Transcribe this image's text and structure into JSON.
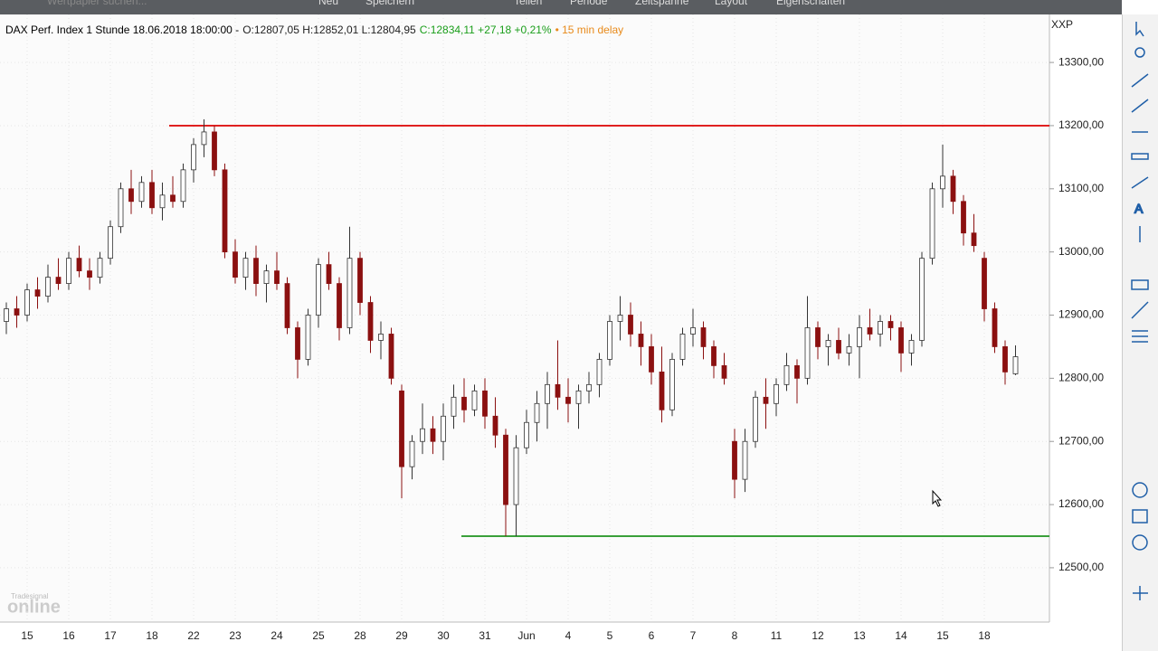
{
  "toolbar": {
    "search": "Wertpapier suchen...",
    "items": [
      "Neu",
      "Speichern",
      "Teilen",
      "Periode",
      "Zeitspanne",
      "Layout",
      "Eigenschaften"
    ]
  },
  "header": {
    "title": "DAX Perf. Index 1 Stunde 18.06.2018 18:00:00 -",
    "ohl": "O:12807,05 H:12852,01 L:12804,95",
    "change": "C:12834,11 +27,18 +0,21%",
    "delay": "• 15 min delay"
  },
  "watermark": {
    "brand": "Tradesignal",
    "name": "online"
  },
  "chart_data": {
    "type": "candlestick",
    "axis_label": "XXP",
    "grid": true,
    "up_color": "#ffffff",
    "down_color": "#8b1010",
    "ylim": [
      12414,
      13376
    ],
    "yticks": [
      {
        "value": 12500,
        "label": "12500,00"
      },
      {
        "value": 12600,
        "label": "12600,00"
      },
      {
        "value": 12700,
        "label": "12700,00"
      },
      {
        "value": 12800,
        "label": "12800,00"
      },
      {
        "value": 12900,
        "label": "12900,00"
      },
      {
        "value": 13000,
        "label": "13000,00"
      },
      {
        "value": 13100,
        "label": "13100,00"
      },
      {
        "value": 13200,
        "label": "13200,00"
      },
      {
        "value": 13300,
        "label": "13300,00"
      }
    ],
    "hlines": [
      {
        "value": 13200,
        "color": "#e02020"
      },
      {
        "value": 12550,
        "color": "#3aa03a"
      }
    ],
    "categories": [
      null,
      null,
      "15",
      null,
      null,
      null,
      "16",
      null,
      null,
      null,
      "17",
      null,
      null,
      null,
      "18",
      null,
      null,
      null,
      "22",
      null,
      null,
      null,
      "23",
      null,
      null,
      null,
      "24",
      null,
      null,
      null,
      "25",
      null,
      null,
      null,
      "28",
      null,
      null,
      null,
      "29",
      null,
      null,
      null,
      "30",
      null,
      null,
      null,
      "31",
      null,
      null,
      null,
      "Jun",
      null,
      null,
      null,
      "4",
      null,
      null,
      null,
      "5",
      null,
      null,
      null,
      "6",
      null,
      null,
      null,
      "7",
      null,
      null,
      null,
      "8",
      null,
      null,
      null,
      "11",
      null,
      null,
      null,
      "12",
      null,
      null,
      null,
      "13",
      null,
      null,
      null,
      "14",
      null,
      null,
      null,
      "15",
      null,
      null,
      null,
      "18",
      null,
      null,
      null
    ],
    "open": [
      12890,
      12910,
      12900,
      12940,
      12930,
      12960,
      12950,
      12990,
      12970,
      12960,
      12990,
      13040,
      13100,
      13080,
      13110,
      13070,
      13090,
      13080,
      13130,
      13170,
      13190,
      13130,
      13000,
      12960,
      12990,
      12950,
      12970,
      12950,
      12880,
      12830,
      12900,
      12980,
      12950,
      12880,
      12990,
      12920,
      12860,
      12870,
      12780,
      12660,
      12700,
      12720,
      12700,
      12740,
      12770,
      12750,
      12780,
      12740,
      12710,
      12600,
      12690,
      12730,
      12760,
      12790,
      12770,
      12760,
      12780,
      12790,
      12830,
      12890,
      12900,
      12870,
      12850,
      12810,
      12750,
      12830,
      12870,
      12880,
      12850,
      12820,
      12700,
      12640,
      12700,
      12770,
      12760,
      12790,
      12820,
      12800,
      12880,
      12850,
      12860,
      12840,
      12850,
      12880,
      12870,
      12890,
      12880,
      12840,
      12860,
      12990,
      13100,
      13120,
      13080,
      13030,
      12990,
      12910,
      12850,
      12807.05
    ],
    "high": [
      12920,
      12930,
      12950,
      12960,
      12980,
      12990,
      13000,
      13010,
      12990,
      13000,
      13050,
      13110,
      13130,
      13120,
      13130,
      13110,
      13120,
      13140,
      13180,
      13210,
      13200,
      13140,
      13020,
      13000,
      13010,
      12980,
      13000,
      12960,
      12890,
      12910,
      12990,
      13000,
      12960,
      13040,
      13000,
      12930,
      12890,
      12880,
      12790,
      12710,
      12760,
      12740,
      12760,
      12790,
      12800,
      12790,
      12800,
      12770,
      12720,
      12710,
      12750,
      12780,
      12810,
      12860,
      12800,
      12790,
      12810,
      12840,
      12900,
      12930,
      12920,
      12890,
      12870,
      12850,
      12840,
      12880,
      12910,
      12890,
      12860,
      12840,
      12720,
      12720,
      12780,
      12800,
      12800,
      12840,
      12830,
      12930,
      12890,
      12870,
      12880,
      12870,
      12900,
      12910,
      12900,
      12900,
      12890,
      12870,
      13000,
      13110,
      13170,
      13130,
      13090,
      13060,
      13000,
      12920,
      12860,
      12852.01
    ],
    "low": [
      12870,
      12880,
      12890,
      12910,
      12920,
      12940,
      12940,
      12960,
      12940,
      12950,
      12980,
      13030,
      13060,
      13070,
      13060,
      13050,
      13070,
      13070,
      13110,
      13150,
      13120,
      12990,
      12950,
      12940,
      12930,
      12920,
      12940,
      12870,
      12800,
      12820,
      12880,
      12940,
      12860,
      12870,
      12900,
      12840,
      12830,
      12790,
      12610,
      12640,
      12680,
      12680,
      12670,
      12720,
      12730,
      12740,
      12720,
      12690,
      12550,
      12550,
      12680,
      12700,
      12720,
      12750,
      12730,
      12720,
      12760,
      12770,
      12820,
      12860,
      12850,
      12820,
      12790,
      12730,
      12740,
      12820,
      12850,
      12830,
      12800,
      12790,
      12610,
      12620,
      12690,
      12720,
      12740,
      12780,
      12760,
      12790,
      12830,
      12820,
      12830,
      12820,
      12800,
      12860,
      12850,
      12860,
      12810,
      12820,
      12850,
      12980,
      13070,
      13060,
      13010,
      13000,
      12890,
      12840,
      12790,
      12804.95
    ],
    "close": [
      12910,
      12900,
      12940,
      12930,
      12960,
      12950,
      12990,
      12970,
      12960,
      12990,
      13040,
      13100,
      13080,
      13110,
      13070,
      13090,
      13080,
      13130,
      13170,
      13190,
      13130,
      13000,
      12960,
      12990,
      12950,
      12970,
      12950,
      12880,
      12830,
      12900,
      12980,
      12950,
      12880,
      12990,
      12920,
      12860,
      12870,
      12800,
      12660,
      12700,
      12720,
      12700,
      12740,
      12770,
      12750,
      12780,
      12740,
      12710,
      12600,
      12690,
      12730,
      12760,
      12790,
      12770,
      12760,
      12780,
      12790,
      12830,
      12890,
      12900,
      12870,
      12850,
      12810,
      12750,
      12830,
      12870,
      12880,
      12850,
      12820,
      12800,
      12640,
      12700,
      12770,
      12760,
      12790,
      12820,
      12800,
      12880,
      12850,
      12860,
      12840,
      12850,
      12880,
      12870,
      12890,
      12880,
      12840,
      12860,
      12990,
      13100,
      13120,
      13080,
      13030,
      13010,
      12910,
      12850,
      12810,
      12834.11
    ]
  }
}
